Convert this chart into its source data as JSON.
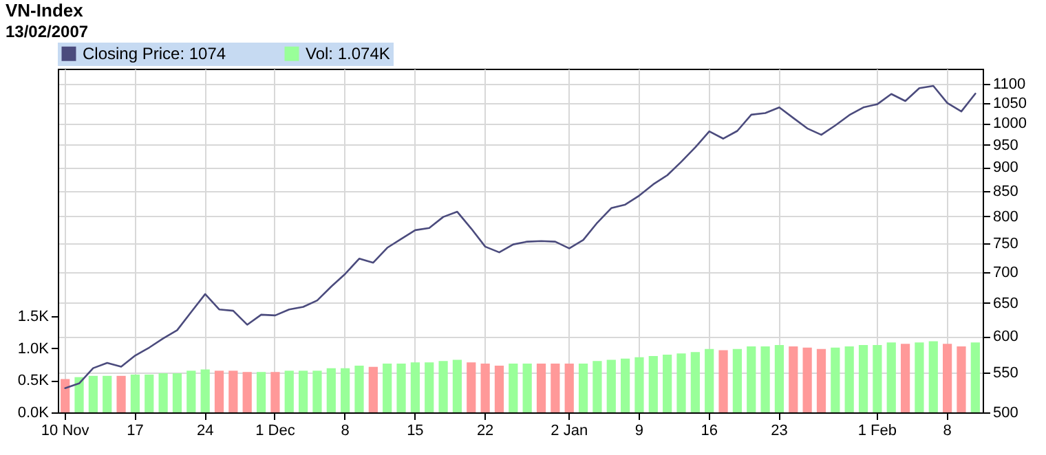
{
  "chart_data": {
    "type": "bar",
    "title": "VN-Index",
    "subtitle": "13/02/2007",
    "categories": [
      "10 Nov",
      null,
      null,
      null,
      null,
      "17",
      null,
      null,
      null,
      null,
      "24",
      null,
      null,
      null,
      null,
      "1 Dec",
      null,
      null,
      null,
      null,
      "8",
      null,
      null,
      null,
      null,
      "15",
      null,
      null,
      null,
      null,
      "22",
      null,
      null,
      null,
      null,
      null,
      "2 Jan",
      null,
      null,
      null,
      null,
      "9",
      null,
      null,
      null,
      null,
      "16",
      null,
      null,
      null,
      null,
      "23",
      null,
      null,
      null,
      null,
      null,
      null,
      "1 Feb",
      null,
      null,
      null,
      null,
      "8",
      null,
      null
    ],
    "series": [
      {
        "name": "Closing Price: 1074",
        "type": "line",
        "axis": "y2",
        "color": "#4b4b7d",
        "values": [
          530,
          536,
          556,
          563,
          558,
          573,
          584,
          597,
          609,
          636,
          664,
          640,
          638,
          617,
          632,
          631,
          640,
          644,
          654,
          676,
          697,
          723,
          716,
          742,
          758,
          774,
          778,
          799,
          809,
          777,
          744,
          734,
          748,
          753,
          754,
          753,
          741,
          756,
          788,
          816,
          823,
          841,
          864,
          883,
          912,
          944,
          981,
          964,
          982,
          1021,
          1025,
          1039,
          1013,
          988,
          973,
          995,
          1020,
          1039,
          1047,
          1073,
          1055,
          1088,
          1094,
          1050,
          1029,
          1074
        ]
      },
      {
        "name": "Vol: 1.074K",
        "color": "#99ff99",
        "values": [
          0.52,
          0.55,
          0.57,
          0.57,
          0.57,
          0.59,
          0.59,
          0.61,
          0.61,
          0.65,
          0.67,
          0.65,
          0.65,
          0.63,
          0.63,
          0.63,
          0.65,
          0.65,
          0.65,
          0.69,
          0.69,
          0.73,
          0.71,
          0.76,
          0.76,
          0.78,
          0.78,
          0.8,
          0.82,
          0.78,
          0.76,
          0.73,
          0.76,
          0.76,
          0.76,
          0.76,
          0.76,
          0.76,
          0.8,
          0.82,
          0.84,
          0.86,
          0.88,
          0.9,
          0.92,
          0.94,
          0.99,
          0.97,
          0.99,
          1.03,
          1.03,
          1.05,
          1.03,
          1.01,
          0.99,
          1.01,
          1.03,
          1.05,
          1.05,
          1.09,
          1.07,
          1.09,
          1.11,
          1.07,
          1.03,
          1.09
        ],
        "colors": [
          "#ff9999",
          "#99ff99",
          "#99ff99",
          "#99ff99",
          "#ff9999",
          "#99ff99",
          "#99ff99",
          "#99ff99",
          "#99ff99",
          "#99ff99",
          "#99ff99",
          "#ff9999",
          "#ff9999",
          "#ff9999",
          "#99ff99",
          "#ff9999",
          "#99ff99",
          "#99ff99",
          "#99ff99",
          "#99ff99",
          "#99ff99",
          "#99ff99",
          "#ff9999",
          "#99ff99",
          "#99ff99",
          "#99ff99",
          "#99ff99",
          "#99ff99",
          "#99ff99",
          "#ff9999",
          "#ff9999",
          "#ff9999",
          "#99ff99",
          "#99ff99",
          "#ff9999",
          "#ff9999",
          "#ff9999",
          "#99ff99",
          "#99ff99",
          "#99ff99",
          "#99ff99",
          "#99ff99",
          "#99ff99",
          "#99ff99",
          "#99ff99",
          "#99ff99",
          "#99ff99",
          "#ff9999",
          "#99ff99",
          "#99ff99",
          "#99ff99",
          "#99ff99",
          "#ff9999",
          "#ff9999",
          "#ff9999",
          "#99ff99",
          "#99ff99",
          "#99ff99",
          "#99ff99",
          "#99ff99",
          "#ff9999",
          "#99ff99",
          "#99ff99",
          "#ff9999",
          "#ff9999",
          "#99ff99"
        ]
      }
    ],
    "ylim": [
      0,
      5.36
    ],
    "yticks": [
      {
        "value": 0,
        "label": "0.0K"
      },
      {
        "value": 0.5,
        "label": "0.5K"
      },
      {
        "value": 1,
        "label": "1.0K"
      },
      {
        "value": 1.5,
        "label": "1.5K"
      }
    ],
    "y2lim": [
      500,
      1140
    ],
    "y2ticks": [
      500,
      550,
      600,
      650,
      700,
      750,
      800,
      850,
      900,
      950,
      1000,
      1050,
      1100
    ],
    "log": "y2",
    "grid": true,
    "legend": "top left"
  }
}
